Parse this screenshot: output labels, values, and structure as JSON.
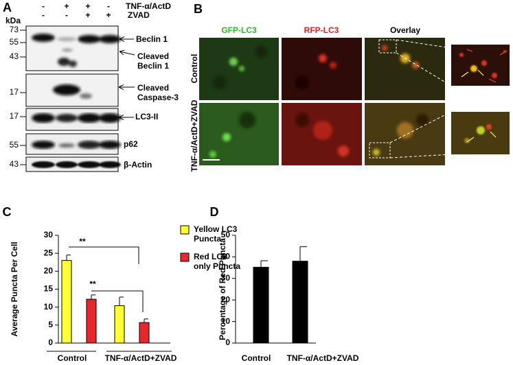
{
  "panel_a": {
    "label": "A",
    "kda": "kDa",
    "conditions": [
      {
        "name": "TNF-α/ActD",
        "signs": [
          "-",
          "+",
          "+",
          "-"
        ]
      },
      {
        "name": "ZVAD",
        "signs": [
          "-",
          "-",
          "+",
          "+"
        ]
      }
    ],
    "markers": [
      73,
      55,
      43,
      17,
      17,
      55,
      43
    ],
    "bands": [
      "Beclin 1",
      "Cleaved Beclin 1",
      "Cleaved Caspase-3",
      "LC3-II",
      "p62",
      "β-Actin"
    ]
  },
  "panel_b": {
    "label": "B",
    "columns": [
      "GFP-LC3",
      "RFP-LC3",
      "Overlay"
    ],
    "rows": [
      "Control",
      "TNF-α/ActD+ZVAD"
    ]
  },
  "chart_data": [
    {
      "type": "bar",
      "label": "C",
      "ylabel": "Average Puncta Per Cell",
      "categories": [
        "Control",
        "TNF-α/ActD+ZVAD"
      ],
      "series": [
        {
          "name": "Yellow LC3 Puncta",
          "color": "#ffff33",
          "values": [
            23,
            10.4
          ],
          "errors": [
            1.5,
            2.4
          ]
        },
        {
          "name": "Red LC3 only Puncta",
          "color": "#e8262b",
          "values": [
            12.2,
            5.7
          ],
          "errors": [
            1.2,
            1.0
          ]
        }
      ],
      "ylim": [
        0,
        30
      ],
      "yticks": [
        0,
        5,
        10,
        15,
        20,
        25,
        30
      ],
      "annotations": [
        "**",
        "**"
      ]
    },
    {
      "type": "bar",
      "label": "D",
      "ylabel": "Percentage of Red Puncta",
      "categories": [
        "Control",
        "TNF-α/ActD+ZVAD"
      ],
      "series": [
        {
          "color": "#000000",
          "values": [
            35.2,
            38
          ],
          "errors": [
            3,
            6.7
          ]
        }
      ],
      "ylim": [
        0,
        50
      ],
      "yticks": [
        0,
        10,
        20,
        30,
        40,
        50
      ]
    }
  ]
}
